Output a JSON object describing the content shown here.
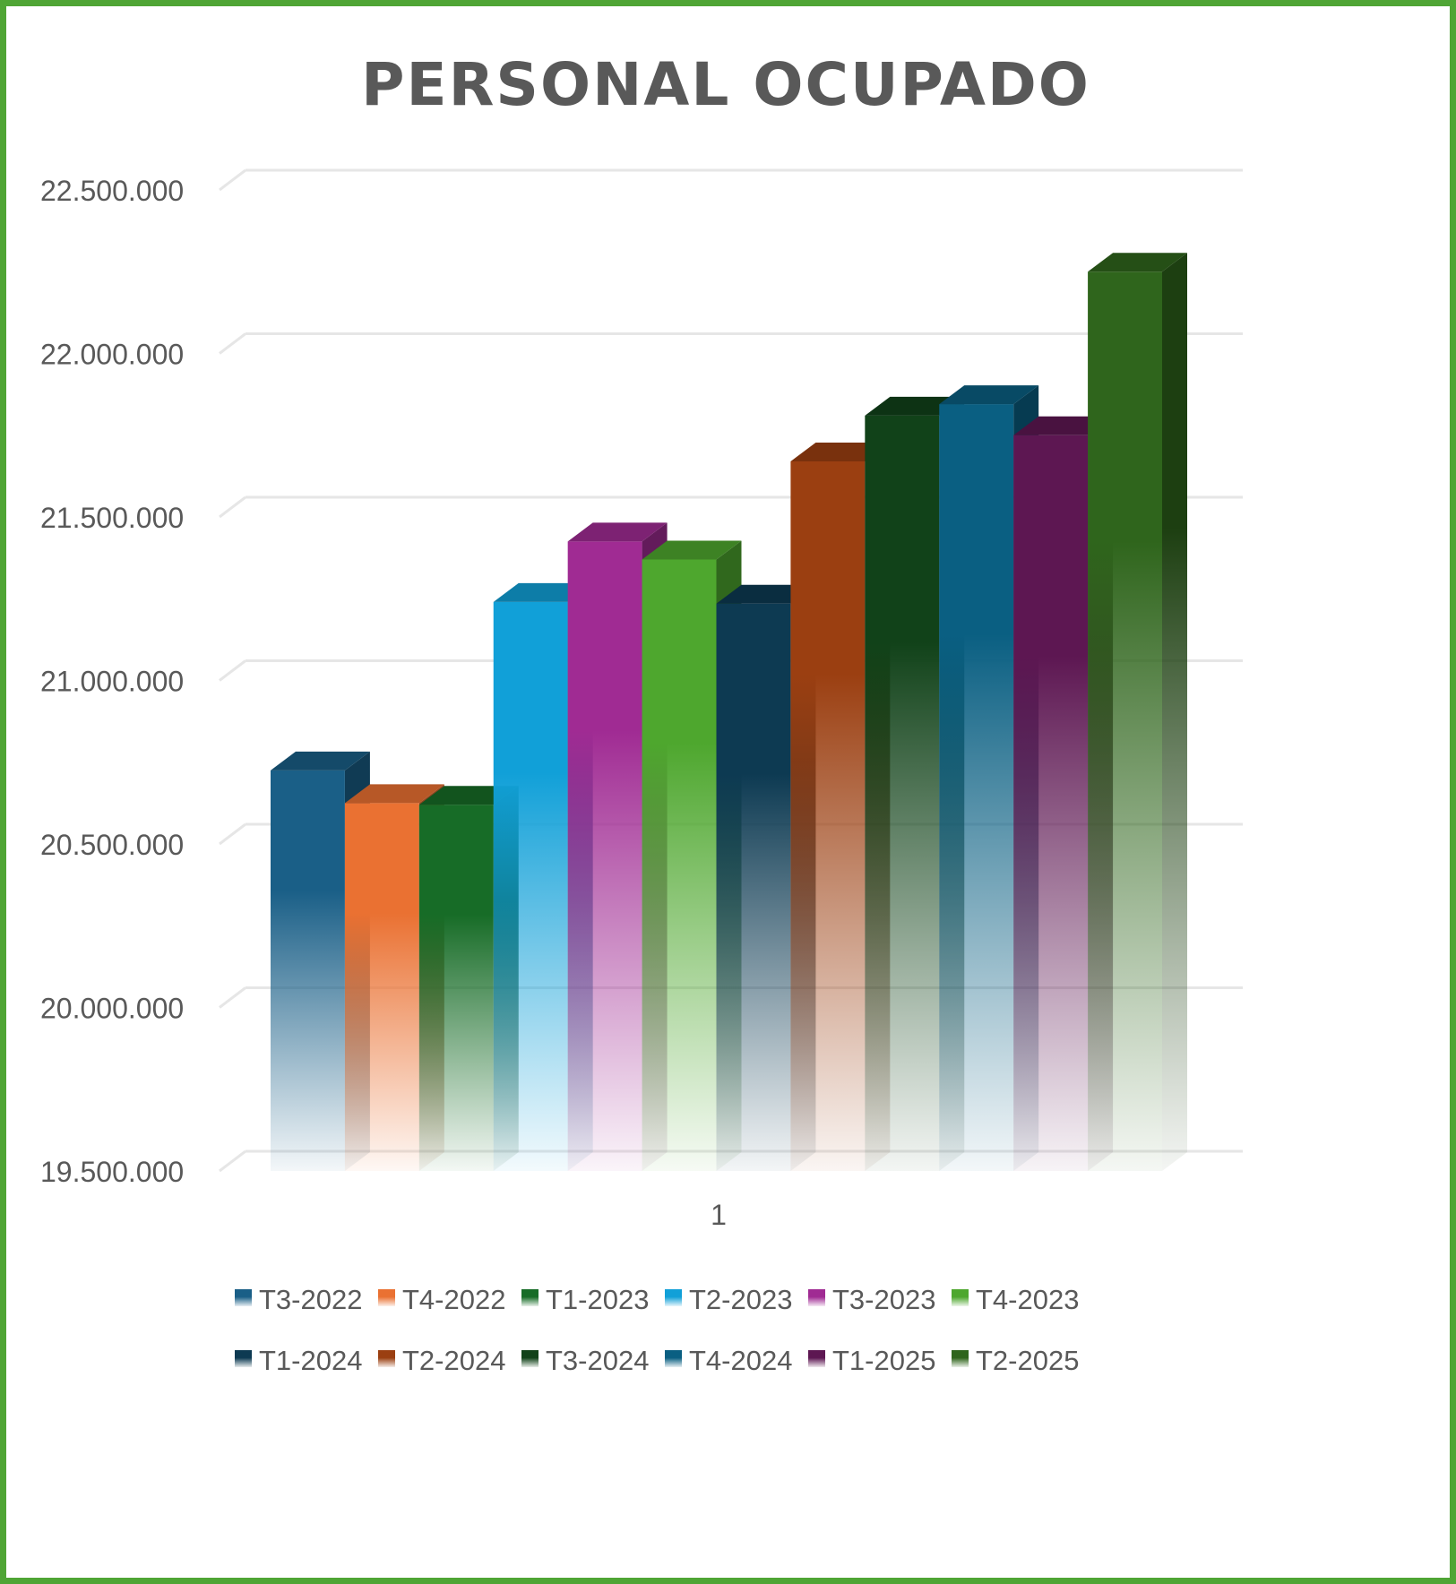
{
  "chart_data": {
    "type": "bar",
    "title": "PERSONAL OCUPADO",
    "xlabel": "",
    "ylabel": "",
    "categories": [
      "1"
    ],
    "ylim": [
      19500000,
      22500000
    ],
    "yticks": [
      19500000,
      20000000,
      20500000,
      21000000,
      21500000,
      22000000,
      22500000
    ],
    "ytick_labels": [
      "19.500.000",
      "20.000.000",
      "20.500.000",
      "21.000.000",
      "21.500.000",
      "22.000.000",
      "22.500.000"
    ],
    "grid": true,
    "legend_position": "bottom",
    "style": "3d-clustered-column with gradient fade",
    "series": [
      {
        "name": "T3-2022",
        "values": [
          20725000
        ],
        "color": "#1a5f87"
      },
      {
        "name": "T4-2022",
        "values": [
          20625000
        ],
        "color": "#ea7132"
      },
      {
        "name": "T1-2023",
        "values": [
          20620000
        ],
        "color": "#176c27"
      },
      {
        "name": "T2-2023",
        "values": [
          21240000
        ],
        "color": "#11a0d8"
      },
      {
        "name": "T3-2023",
        "values": [
          21425000
        ],
        "color": "#a02b93"
      },
      {
        "name": "T4-2023",
        "values": [
          21370000
        ],
        "color": "#4ea72e"
      },
      {
        "name": "T1-2024",
        "values": [
          21235000
        ],
        "color": "#0d3a52"
      },
      {
        "name": "T2-2024",
        "values": [
          21670000
        ],
        "color": "#9b3f11"
      },
      {
        "name": "T3-2024",
        "values": [
          21810000
        ],
        "color": "#114219"
      },
      {
        "name": "T4-2024",
        "values": [
          21845000
        ],
        "color": "#0a5f82"
      },
      {
        "name": "T1-2025",
        "values": [
          21750000
        ],
        "color": "#5d1752"
      },
      {
        "name": "T2-2025",
        "values": [
          22250000
        ],
        "color": "#2f651c"
      }
    ]
  }
}
